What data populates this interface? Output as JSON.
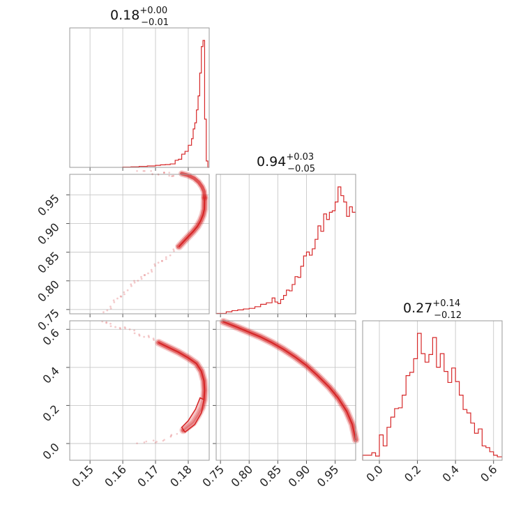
{
  "chart_data": {
    "type": "corner",
    "colors": {
      "series": "#d62728",
      "fill": "#f2b5b6",
      "grid": "#c8c8c8",
      "frame": "#999999"
    },
    "params": [
      {
        "title": "0.18",
        "title_plus": "+0.00",
        "title_minus": "−0.01",
        "range": [
          0.1438,
          0.1864
        ],
        "ticks": [
          0.15,
          0.16,
          0.17,
          0.18
        ],
        "tick_labels": [
          "0.15",
          "0.16",
          "0.17",
          "0.18"
        ]
      },
      {
        "title": "0.94",
        "title_plus": "+0.03",
        "title_minus": "−0.05",
        "range": [
          0.7425,
          0.9858
        ],
        "ticks": [
          0.75,
          0.8,
          0.85,
          0.9,
          0.95
        ],
        "tick_labels": [
          "0.75",
          "0.80",
          "0.85",
          "0.90",
          "0.95"
        ]
      },
      {
        "title": "0.27",
        "title_plus": "+0.14",
        "title_minus": "−0.12",
        "range": [
          -0.088,
          0.645
        ],
        "ticks": [
          0.0,
          0.2,
          0.4,
          0.6
        ],
        "tick_labels": [
          "0.0",
          "0.2",
          "0.4",
          "0.6"
        ]
      }
    ],
    "histograms": [
      {
        "param": 0,
        "bin_edges": [
          0.16,
          0.1625,
          0.165,
          0.1675,
          0.17,
          0.1715,
          0.173,
          0.1745,
          0.176,
          0.177,
          0.178,
          0.179,
          0.18,
          0.181,
          0.1815,
          0.182,
          0.1825,
          0.183,
          0.1835,
          0.184,
          0.1845,
          0.185,
          0.1855,
          0.186,
          0.1864
        ],
        "counts": [
          0.2,
          0.4,
          0.8,
          1.1,
          1.6,
          2.0,
          2.2,
          2.7,
          5.6,
          6.4,
          10.4,
          12.6,
          17.4,
          22.6,
          30.3,
          35.1,
          45.3,
          56.3,
          74.3,
          95.2,
          100.0,
          38.0,
          5.0,
          0.0
        ]
      },
      {
        "param": 1,
        "bin_edges": [
          0.7425,
          0.76,
          0.77,
          0.78,
          0.79,
          0.8,
          0.81,
          0.82,
          0.83,
          0.84,
          0.845,
          0.85,
          0.855,
          0.86,
          0.865,
          0.87,
          0.875,
          0.88,
          0.885,
          0.89,
          0.895,
          0.9,
          0.905,
          0.91,
          0.915,
          0.92,
          0.925,
          0.93,
          0.935,
          0.94,
          0.945,
          0.95,
          0.955,
          0.96,
          0.965,
          0.97,
          0.975,
          0.98,
          0.9858
        ],
        "counts": [
          0.3,
          1.6,
          2.5,
          3.1,
          3.8,
          4.3,
          5.6,
          7.5,
          8.7,
          12.5,
          9.3,
          8.1,
          11.3,
          14.5,
          18.7,
          18.1,
          23.1,
          29.3,
          28.7,
          37.5,
          45.6,
          48.7,
          46.2,
          51.2,
          58.7,
          69.3,
          65.0,
          78.7,
          74.3,
          80.0,
          81.2,
          88.1,
          100.0,
          93.1,
          88.1,
          76.8,
          84.3,
          80.0
        ]
      },
      {
        "param": 2,
        "bin_edges": [
          -0.088,
          -0.04,
          -0.02,
          0.0,
          0.02,
          0.04,
          0.06,
          0.08,
          0.1,
          0.12,
          0.14,
          0.16,
          0.18,
          0.2,
          0.22,
          0.24,
          0.26,
          0.28,
          0.3,
          0.32,
          0.34,
          0.36,
          0.38,
          0.4,
          0.42,
          0.44,
          0.46,
          0.48,
          0.5,
          0.52,
          0.54,
          0.56,
          0.58,
          0.6,
          0.62,
          0.645
        ],
        "counts": [
          4.0,
          5.9,
          3.3,
          20.0,
          11.3,
          26.0,
          34.0,
          40.7,
          41.3,
          51.3,
          66.7,
          69.3,
          80.0,
          100.0,
          84.0,
          77.3,
          83.3,
          96.7,
          73.3,
          84.0,
          70.0,
          61.3,
          72.7,
          62.0,
          51.3,
          40.0,
          37.3,
          29.3,
          21.3,
          24.7,
          11.3,
          10.0,
          6.7,
          4.0,
          2.7
        ]
      }
    ],
    "pairs": [
      {
        "x_param": 0,
        "y_param": 1,
        "curve": [
          [
            0.185,
            0.945
          ],
          [
            0.1849,
            0.925
          ],
          [
            0.1845,
            0.915
          ],
          [
            0.1838,
            0.905
          ],
          [
            0.1828,
            0.895
          ],
          [
            0.1815,
            0.886
          ],
          [
            0.1798,
            0.876
          ],
          [
            0.1785,
            0.868
          ],
          [
            0.1772,
            0.86
          ]
        ],
        "upper_curve": [
          [
            0.185,
            0.945
          ],
          [
            0.1848,
            0.956
          ],
          [
            0.1842,
            0.964
          ],
          [
            0.1832,
            0.972
          ],
          [
            0.1818,
            0.979
          ],
          [
            0.18,
            0.984
          ],
          [
            0.178,
            0.987
          ]
        ],
        "tail": [
          [
            0.177,
            0.858
          ],
          [
            0.1745,
            0.846
          ],
          [
            0.1715,
            0.833
          ],
          [
            0.169,
            0.822
          ],
          [
            0.1665,
            0.81
          ],
          [
            0.164,
            0.797
          ],
          [
            0.1615,
            0.785
          ],
          [
            0.159,
            0.771
          ],
          [
            0.1565,
            0.758
          ],
          [
            0.154,
            0.745
          ]
        ],
        "top_scatter": [
          [
            0.165,
            0.988
          ],
          [
            0.169,
            0.988
          ],
          [
            0.172,
            0.987
          ],
          [
            0.1745,
            0.987
          ],
          [
            0.176,
            0.986
          ]
        ]
      },
      {
        "x_param": 0,
        "y_param": 2,
        "curve": [
          [
            0.171,
            0.53
          ],
          [
            0.174,
            0.505
          ],
          [
            0.177,
            0.48
          ],
          [
            0.18,
            0.45
          ],
          [
            0.1825,
            0.42
          ],
          [
            0.184,
            0.38
          ],
          [
            0.1848,
            0.33
          ],
          [
            0.185,
            0.28
          ],
          [
            0.1848,
            0.23
          ],
          [
            0.1842,
            0.19
          ],
          [
            0.183,
            0.15
          ],
          [
            0.1815,
            0.11
          ],
          [
            0.18,
            0.09
          ],
          [
            0.1785,
            0.07
          ]
        ],
        "contour_fill": [
          [
            0.179,
            0.06
          ],
          [
            0.182,
            0.1
          ],
          [
            0.184,
            0.16
          ],
          [
            0.1848,
            0.23
          ],
          [
            0.1836,
            0.24
          ],
          [
            0.1822,
            0.18
          ],
          [
            0.18,
            0.12
          ],
          [
            0.178,
            0.085
          ]
        ],
        "tail": [
          [
            0.17,
            0.535
          ],
          [
            0.1665,
            0.565
          ],
          [
            0.163,
            0.59
          ],
          [
            0.1595,
            0.612
          ],
          [
            0.156,
            0.63
          ],
          [
            0.153,
            0.645
          ]
        ],
        "bottom_scatter": [
          [
            0.165,
            -0.01
          ],
          [
            0.17,
            0.01
          ],
          [
            0.174,
            0.03
          ],
          [
            0.177,
            0.05
          ]
        ]
      },
      {
        "x_param": 1,
        "y_param": 2,
        "curve": [
          [
            0.755,
            0.64
          ],
          [
            0.78,
            0.61
          ],
          [
            0.8,
            0.585
          ],
          [
            0.82,
            0.56
          ],
          [
            0.84,
            0.53
          ],
          [
            0.86,
            0.495
          ],
          [
            0.88,
            0.455
          ],
          [
            0.9,
            0.41
          ],
          [
            0.92,
            0.355
          ],
          [
            0.94,
            0.295
          ],
          [
            0.955,
            0.24
          ],
          [
            0.97,
            0.17
          ],
          [
            0.98,
            0.1
          ],
          [
            0.9858,
            0.02
          ]
        ]
      }
    ]
  }
}
